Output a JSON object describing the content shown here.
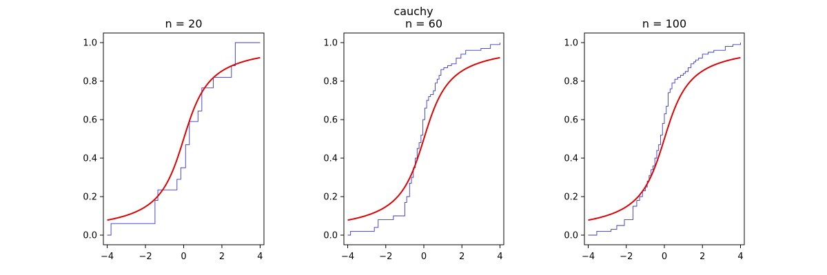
{
  "suptitle": "cauchy",
  "colors": {
    "ecdf": "#3333cc",
    "cdf": "#e00000"
  },
  "chart_data": [
    {
      "type": "line",
      "title": "n = 20",
      "xlim": [
        -4.2,
        4.2
      ],
      "ylim": [
        -0.05,
        1.05
      ],
      "xticks": [
        -4,
        -2,
        0,
        2,
        4
      ],
      "yticks": [
        0.0,
        0.2,
        0.4,
        0.6,
        0.8,
        1.0
      ],
      "xtick_labels": [
        "−4",
        "−2",
        "0",
        "2",
        "4"
      ],
      "ytick_labels": [
        "0.0",
        "0.2",
        "0.4",
        "0.6",
        "0.8",
        "1.0"
      ],
      "series": [
        {
          "kind": "step",
          "x": [
            -4.0,
            -3.8,
            -1.5,
            -1.35,
            -0.35,
            -0.15,
            0.1,
            0.3,
            0.75,
            0.95,
            1.55,
            2.5,
            2.7,
            4.0
          ],
          "y": [
            0.0,
            0.06,
            0.18,
            0.235,
            0.29,
            0.35,
            0.47,
            0.59,
            0.645,
            0.765,
            0.82,
            0.88,
            1.0,
            1.0
          ]
        },
        {
          "kind": "cdf",
          "distribution": "cauchy",
          "x_range": [
            -4,
            4
          ]
        }
      ]
    },
    {
      "type": "line",
      "title": "n = 60",
      "xlim": [
        -4.2,
        4.2
      ],
      "ylim": [
        -0.05,
        1.05
      ],
      "xticks": [
        -4,
        -2,
        0,
        2,
        4
      ],
      "yticks": [
        0.0,
        0.2,
        0.4,
        0.6,
        0.8,
        1.0
      ],
      "xtick_labels": [
        "−4",
        "−2",
        "0",
        "2",
        "4"
      ],
      "ytick_labels": [
        "0.0",
        "0.2",
        "0.4",
        "0.6",
        "0.8",
        "1.0"
      ],
      "series": [
        {
          "kind": "step",
          "x": [
            -4.0,
            -3.85,
            -2.6,
            -2.4,
            -1.6,
            -1.0,
            -0.9,
            -0.75,
            -0.65,
            -0.55,
            -0.45,
            -0.35,
            -0.25,
            -0.15,
            -0.05,
            0.05,
            0.15,
            0.25,
            0.35,
            0.5,
            0.6,
            0.7,
            0.8,
            0.9,
            1.05,
            1.25,
            1.45,
            1.7,
            1.95,
            2.2,
            3.0,
            3.5,
            4.0
          ],
          "y": [
            0.0,
            0.02,
            0.04,
            0.08,
            0.1,
            0.17,
            0.2,
            0.27,
            0.3,
            0.35,
            0.4,
            0.45,
            0.48,
            0.52,
            0.6,
            0.66,
            0.7,
            0.72,
            0.73,
            0.75,
            0.79,
            0.81,
            0.83,
            0.86,
            0.87,
            0.88,
            0.89,
            0.92,
            0.94,
            0.96,
            0.97,
            0.99,
            1.0
          ]
        },
        {
          "kind": "cdf",
          "distribution": "cauchy",
          "x_range": [
            -4,
            4
          ]
        }
      ]
    },
    {
      "type": "line",
      "title": "n = 100",
      "xlim": [
        -4.2,
        4.2
      ],
      "ylim": [
        -0.05,
        1.05
      ],
      "xticks": [
        -4,
        -2,
        0,
        2,
        4
      ],
      "yticks": [
        0.0,
        0.2,
        0.4,
        0.6,
        0.8,
        1.0
      ],
      "xtick_labels": [
        "−4",
        "−2",
        "0",
        "2",
        "4"
      ],
      "ytick_labels": [
        "0.0",
        "0.2",
        "0.4",
        "0.6",
        "0.8",
        "1.0"
      ],
      "series": [
        {
          "kind": "step",
          "x": [
            -4.0,
            -3.55,
            -2.8,
            -2.5,
            -2.1,
            -1.65,
            -1.45,
            -1.3,
            -1.15,
            -1.0,
            -0.9,
            -0.8,
            -0.7,
            -0.6,
            -0.5,
            -0.4,
            -0.3,
            -0.2,
            -0.1,
            0.0,
            0.1,
            0.2,
            0.3,
            0.4,
            0.55,
            0.7,
            0.85,
            1.0,
            1.1,
            1.25,
            1.4,
            1.55,
            1.65,
            1.8,
            2.0,
            2.3,
            2.6,
            3.2,
            3.6,
            4.0
          ],
          "y": [
            0.0,
            0.02,
            0.03,
            0.05,
            0.08,
            0.15,
            0.18,
            0.2,
            0.23,
            0.25,
            0.28,
            0.31,
            0.34,
            0.36,
            0.4,
            0.44,
            0.47,
            0.52,
            0.58,
            0.63,
            0.67,
            0.74,
            0.76,
            0.79,
            0.81,
            0.82,
            0.83,
            0.84,
            0.85,
            0.87,
            0.89,
            0.9,
            0.91,
            0.92,
            0.94,
            0.95,
            0.96,
            0.98,
            0.99,
            1.0
          ]
        },
        {
          "kind": "cdf",
          "distribution": "cauchy",
          "x_range": [
            -4,
            4
          ]
        }
      ]
    }
  ]
}
